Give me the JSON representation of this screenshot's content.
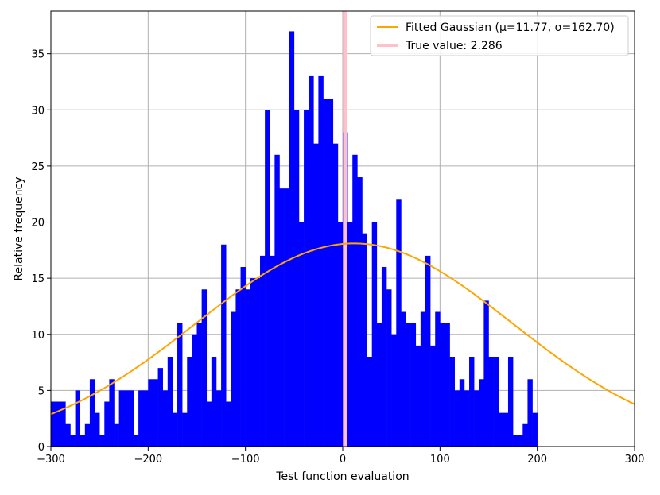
{
  "chart_data": {
    "type": "histogram",
    "title": "",
    "xlabel": "Test function evaluation",
    "ylabel": "Relative frequency",
    "xlim": [
      -300,
      300
    ],
    "ylim": [
      0,
      38.8
    ],
    "xticks": [
      -300,
      -200,
      -100,
      0,
      100,
      200,
      300
    ],
    "xtick_labels": [
      "−300",
      "−200",
      "−100",
      "0",
      "100",
      "200",
      "300"
    ],
    "yticks": [
      0,
      5,
      10,
      15,
      20,
      25,
      30,
      35
    ],
    "ytick_labels": [
      "0",
      "5",
      "10",
      "15",
      "20",
      "25",
      "30",
      "35"
    ],
    "grid": true,
    "legend_position": "top-right",
    "bin_width": 5,
    "bins_start": -300,
    "counts": [
      4,
      4,
      4,
      2,
      1,
      5,
      1,
      2,
      6,
      3,
      1,
      4,
      6,
      2,
      5,
      5,
      5,
      1,
      5,
      5,
      6,
      6,
      7,
      5,
      8,
      3,
      11,
      3,
      8,
      10,
      11,
      14,
      4,
      8,
      5,
      18,
      4,
      12,
      14,
      16,
      14,
      15,
      15,
      17,
      30,
      17,
      26,
      23,
      23,
      37,
      30,
      20,
      30,
      33,
      27,
      33,
      31,
      31,
      27,
      20,
      28,
      20,
      26,
      24,
      19,
      8,
      20,
      11,
      16,
      14,
      10,
      22,
      12,
      11,
      11,
      9,
      12,
      17,
      9,
      12,
      11,
      11,
      8,
      5,
      6,
      5,
      8,
      5,
      6,
      13,
      8,
      8,
      3,
      3,
      8,
      1,
      1,
      2,
      6,
      3
    ],
    "series": [
      {
        "name": "Fitted Gaussian (μ=11.77, σ=162.70)",
        "kind": "line",
        "color": "#ffa500",
        "mu": 11.77,
        "sigma": 162.7,
        "peak": 18.1
      },
      {
        "name": "True value: 2.286",
        "kind": "vline",
        "color": "#ffc0cb",
        "x": 2.286
      }
    ],
    "bar_color": "#0000ff",
    "grid_color": "#b0b0b0"
  }
}
